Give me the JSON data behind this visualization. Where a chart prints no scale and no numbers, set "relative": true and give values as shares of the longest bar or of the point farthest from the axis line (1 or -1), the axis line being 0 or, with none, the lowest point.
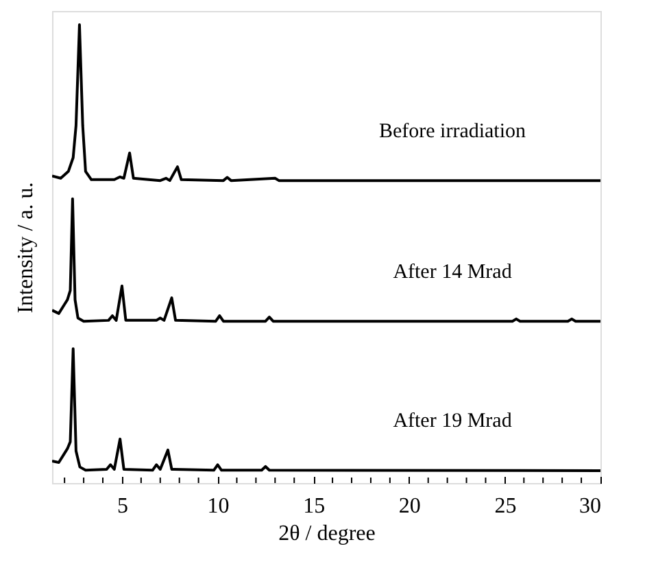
{
  "chart_data": {
    "type": "line",
    "relative": true,
    "xlabel": "2θ / degree",
    "ylabel": "Intensity / a. u.",
    "xlim": [
      1.35,
      30
    ],
    "xticks": [
      {
        "value": 2,
        "label": null
      },
      {
        "value": 3,
        "label": null
      },
      {
        "value": 4,
        "label": null
      },
      5,
      {
        "value": 6,
        "label": null
      },
      {
        "value": 7,
        "label": null
      },
      {
        "value": 8,
        "label": null
      },
      {
        "value": 9,
        "label": null
      },
      10,
      {
        "value": 11,
        "label": null
      },
      {
        "value": 12,
        "label": null
      },
      {
        "value": 13,
        "label": null
      },
      {
        "value": 14,
        "label": null
      },
      15,
      {
        "value": 16,
        "label": null
      },
      {
        "value": 17,
        "label": null
      },
      {
        "value": 18,
        "label": null
      },
      {
        "value": 19,
        "label": null
      },
      20,
      {
        "value": 21,
        "label": null
      },
      {
        "value": 22,
        "label": null
      },
      {
        "value": 23,
        "label": null
      },
      {
        "value": 24,
        "label": null
      },
      25,
      {
        "value": 26,
        "label": null
      },
      {
        "value": 27,
        "label": null
      },
      {
        "value": 28,
        "label": null
      },
      {
        "value": 29,
        "label": null
      },
      30
    ],
    "tick_labels": "x",
    "grid": false,
    "line_style": "solid",
    "series": [
      {
        "name": "Before irradiation",
        "color": "#000000",
        "x": [
          1.35,
          1.8,
          2.2,
          2.45,
          2.6,
          2.78,
          2.95,
          3.1,
          3.4,
          4.6,
          4.9,
          5.1,
          5.4,
          5.6,
          7.0,
          7.3,
          7.5,
          7.9,
          8.1,
          10.3,
          10.5,
          10.7,
          13.0,
          13.2,
          30
        ],
        "values": [
          0.67,
          0.665,
          0.68,
          0.71,
          0.78,
          1.0,
          0.78,
          0.68,
          0.662,
          0.662,
          0.668,
          0.665,
          0.72,
          0.665,
          0.66,
          0.665,
          0.66,
          0.69,
          0.662,
          0.66,
          0.667,
          0.66,
          0.665,
          0.66,
          0.66
        ]
      },
      {
        "name": "After 14 Mrad",
        "color": "#000000",
        "x": [
          1.35,
          1.7,
          2.0,
          2.15,
          2.3,
          2.42,
          2.55,
          2.7,
          3.0,
          4.3,
          4.5,
          4.7,
          5.0,
          5.2,
          6.8,
          7.0,
          7.2,
          7.6,
          7.8,
          9.9,
          10.1,
          10.3,
          12.5,
          12.7,
          12.9,
          25.4,
          25.6,
          25.8,
          28.3,
          28.5,
          28.7,
          30
        ],
        "values": [
          0.377,
          0.37,
          0.39,
          0.4,
          0.42,
          0.62,
          0.4,
          0.36,
          0.353,
          0.355,
          0.365,
          0.355,
          0.43,
          0.355,
          0.355,
          0.36,
          0.355,
          0.404,
          0.355,
          0.353,
          0.365,
          0.353,
          0.353,
          0.362,
          0.353,
          0.353,
          0.358,
          0.353,
          0.353,
          0.358,
          0.353,
          0.353
        ]
      },
      {
        "name": "After 19 Mrad",
        "color": "#000000",
        "x": [
          1.35,
          1.7,
          2.0,
          2.15,
          2.3,
          2.45,
          2.6,
          2.8,
          3.1,
          4.2,
          4.4,
          4.6,
          4.9,
          5.1,
          6.6,
          6.8,
          7.0,
          7.4,
          7.6,
          9.8,
          10.0,
          10.2,
          12.3,
          12.5,
          12.7,
          30
        ],
        "values": [
          0.048,
          0.045,
          0.065,
          0.075,
          0.09,
          0.293,
          0.07,
          0.035,
          0.028,
          0.03,
          0.04,
          0.03,
          0.096,
          0.03,
          0.028,
          0.04,
          0.03,
          0.072,
          0.03,
          0.028,
          0.04,
          0.028,
          0.028,
          0.036,
          0.028,
          0.027
        ]
      }
    ]
  }
}
